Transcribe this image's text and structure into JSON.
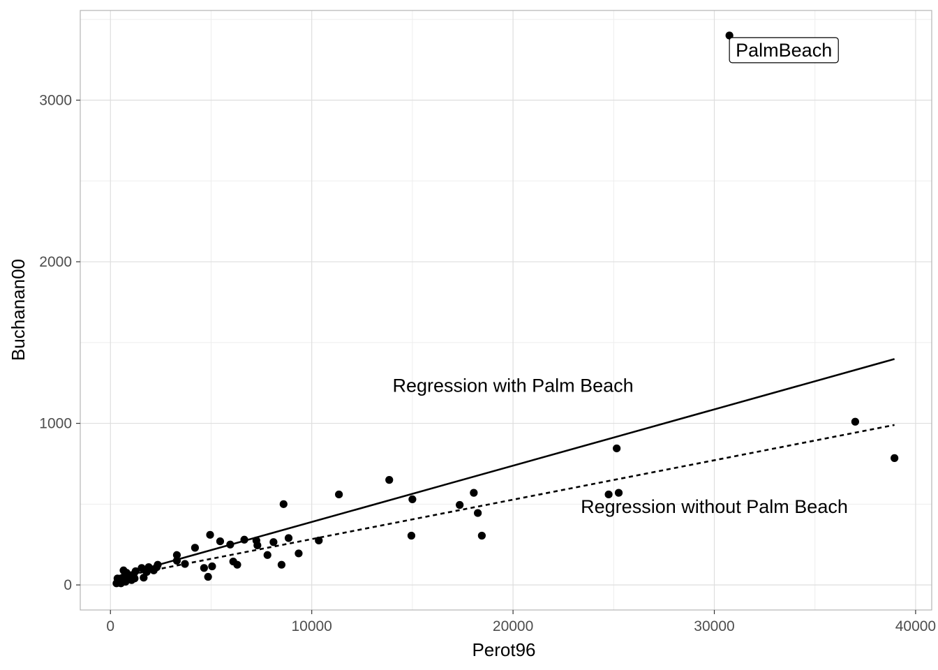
{
  "chart_data": {
    "type": "scatter",
    "xlabel": "Perot96",
    "ylabel": "Buchanan00",
    "xlim": [
      -1500,
      40800
    ],
    "ylim": [
      -155,
      3555
    ],
    "x_ticks": [
      0,
      10000,
      20000,
      30000,
      40000
    ],
    "y_ticks": [
      0,
      1000,
      2000,
      3000
    ],
    "x_tick_labels": [
      "0",
      "10000",
      "20000",
      "30000",
      "40000"
    ],
    "y_tick_labels": [
      "0",
      "1000",
      "2000",
      "3000"
    ],
    "grid": true,
    "points": [
      {
        "x": 300,
        "y": 10
      },
      {
        "x": 350,
        "y": 40
      },
      {
        "x": 450,
        "y": 25
      },
      {
        "x": 520,
        "y": 10
      },
      {
        "x": 600,
        "y": 35
      },
      {
        "x": 650,
        "y": 90
      },
      {
        "x": 700,
        "y": 55
      },
      {
        "x": 750,
        "y": 20
      },
      {
        "x": 800,
        "y": 75
      },
      {
        "x": 900,
        "y": 40
      },
      {
        "x": 950,
        "y": 60
      },
      {
        "x": 1050,
        "y": 30
      },
      {
        "x": 1100,
        "y": 50
      },
      {
        "x": 1150,
        "y": 65
      },
      {
        "x": 1200,
        "y": 40
      },
      {
        "x": 1250,
        "y": 85
      },
      {
        "x": 1550,
        "y": 105
      },
      {
        "x": 1650,
        "y": 45
      },
      {
        "x": 1800,
        "y": 80
      },
      {
        "x": 1900,
        "y": 110
      },
      {
        "x": 2150,
        "y": 90
      },
      {
        "x": 2300,
        "y": 110
      },
      {
        "x": 2350,
        "y": 125
      },
      {
        "x": 3300,
        "y": 185
      },
      {
        "x": 3300,
        "y": 150
      },
      {
        "x": 3700,
        "y": 130
      },
      {
        "x": 4200,
        "y": 230
      },
      {
        "x": 4650,
        "y": 105
      },
      {
        "x": 4850,
        "y": 50
      },
      {
        "x": 4950,
        "y": 310
      },
      {
        "x": 5050,
        "y": 115
      },
      {
        "x": 5450,
        "y": 270
      },
      {
        "x": 5950,
        "y": 250
      },
      {
        "x": 6100,
        "y": 145
      },
      {
        "x": 6300,
        "y": 125
      },
      {
        "x": 6650,
        "y": 280
      },
      {
        "x": 7250,
        "y": 275
      },
      {
        "x": 7300,
        "y": 245
      },
      {
        "x": 7800,
        "y": 185
      },
      {
        "x": 8100,
        "y": 265
      },
      {
        "x": 8500,
        "y": 125
      },
      {
        "x": 8600,
        "y": 500
      },
      {
        "x": 8850,
        "y": 290
      },
      {
        "x": 9350,
        "y": 195
      },
      {
        "x": 10350,
        "y": 275
      },
      {
        "x": 11350,
        "y": 560
      },
      {
        "x": 13850,
        "y": 650
      },
      {
        "x": 14950,
        "y": 305
      },
      {
        "x": 15000,
        "y": 530
      },
      {
        "x": 17350,
        "y": 495
      },
      {
        "x": 18050,
        "y": 570
      },
      {
        "x": 18250,
        "y": 445
      },
      {
        "x": 18450,
        "y": 305
      },
      {
        "x": 24750,
        "y": 560
      },
      {
        "x": 25150,
        "y": 845
      },
      {
        "x": 25250,
        "y": 570
      },
      {
        "x": 30750,
        "y": 3400
      },
      {
        "x": 37000,
        "y": 1010
      },
      {
        "x": 38950,
        "y": 785
      }
    ],
    "lines": [
      {
        "name": "Regression with Palm Beach",
        "style": "solid",
        "x": [
          300,
          38950
        ],
        "y": [
          52,
          1398
        ]
      },
      {
        "name": "Regression without Palm Beach",
        "style": "dashed",
        "x": [
          300,
          38950
        ],
        "y": [
          47,
          990
        ]
      }
    ],
    "annotations": [
      {
        "text": "Regression with Palm Beach",
        "x": 20000,
        "y": 1195
      },
      {
        "text": "Regression without Palm Beach",
        "x": 30000,
        "y": 445
      }
    ],
    "labels": [
      {
        "text": "PalmBeach",
        "x": 30750,
        "y": 3400
      }
    ]
  }
}
